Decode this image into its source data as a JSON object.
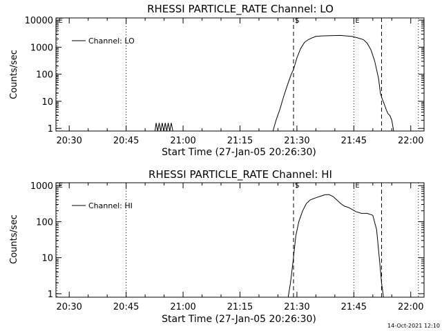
{
  "footer": {
    "timestamp": "14-Oct-2021 12:10"
  },
  "chart_data": [
    {
      "type": "line",
      "title": "RHESSI PARTICLE_RATE Channel: LO",
      "xlabel": "Start Time (27-Jan-05 20:26:30)",
      "ylabel": "Counts/sec",
      "yscale": "log",
      "xlim_minutes": [
        0,
        97
      ],
      "ylim": [
        0.8,
        12000
      ],
      "x_ticks": [
        "20:30",
        "20:45",
        "21:00",
        "21:15",
        "21:30",
        "21:45",
        "22:00"
      ],
      "x_tick_minutes": [
        3.5,
        18.5,
        33.5,
        48.5,
        63.5,
        78.5,
        93.5
      ],
      "y_ticks": [
        "1",
        "10",
        "100",
        "1000",
        "10000"
      ],
      "y_tick_values": [
        1,
        10,
        100,
        1000,
        10000
      ],
      "legend": {
        "label": "Channel: LO",
        "position": "top-left"
      },
      "markers": [
        {
          "label": "E",
          "x": 0.3,
          "style": "dotted"
        },
        {
          "label": "",
          "x": 18.5,
          "style": "dotted"
        },
        {
          "label": "S",
          "x": 62.6,
          "style": "dashed"
        },
        {
          "label": "E",
          "x": 78.5,
          "style": "dotted"
        },
        {
          "label": "",
          "x": 85.8,
          "style": "dashed"
        },
        {
          "label": "",
          "x": 95.5,
          "style": "dotted"
        }
      ],
      "series": [
        {
          "name": "Channel: LO",
          "x": [
            26.1,
            26.4,
            26.8,
            27.2,
            27.6,
            28.0,
            28.4,
            28.8,
            29.2,
            29.6,
            30.0,
            30.4,
            30.8
          ],
          "y": [
            0.8,
            1.6,
            0.8,
            1.6,
            0.8,
            1.6,
            0.8,
            1.6,
            0.8,
            1.6,
            0.8,
            1.6,
            0.8
          ]
        },
        {
          "name": "Channel: LO",
          "x": [
            57.2,
            58.0,
            59.0,
            60.0,
            61.0,
            62.0,
            62.6,
            63.5,
            64.5,
            65.5,
            66.5,
            67.5,
            68.5,
            70.0,
            72.0,
            75.0,
            78.0,
            79.5,
            81.0,
            82.0,
            83.0,
            84.0,
            85.0,
            85.5,
            86.0,
            86.5,
            87.0,
            87.5,
            88.0,
            88.5,
            89.0
          ],
          "y": [
            0.8,
            2,
            5,
            15,
            40,
            100,
            150,
            400,
            900,
            1500,
            1900,
            2200,
            2500,
            2600,
            2650,
            2700,
            2500,
            2200,
            1900,
            1400,
            800,
            300,
            70,
            20,
            12,
            8,
            5,
            3.5,
            3,
            2,
            0.8
          ]
        }
      ]
    },
    {
      "type": "line",
      "title": "RHESSI PARTICLE_RATE Channel: HI",
      "xlabel": "Start Time (27-Jan-05 20:26:30)",
      "ylabel": "Counts/sec",
      "yscale": "log",
      "xlim_minutes": [
        0,
        97
      ],
      "ylim": [
        0.8,
        1200
      ],
      "x_ticks": [
        "20:30",
        "20:45",
        "21:00",
        "21:15",
        "21:30",
        "21:45",
        "22:00"
      ],
      "x_tick_minutes": [
        3.5,
        18.5,
        33.5,
        48.5,
        63.5,
        78.5,
        93.5
      ],
      "y_ticks": [
        "1",
        "10",
        "100",
        "1000"
      ],
      "y_tick_values": [
        1,
        10,
        100,
        1000
      ],
      "legend": {
        "label": "Channel: HI",
        "position": "top-left"
      },
      "markers": [
        {
          "label": "E",
          "x": 0.3,
          "style": "dotted"
        },
        {
          "label": "",
          "x": 18.5,
          "style": "dotted"
        },
        {
          "label": "S",
          "x": 62.6,
          "style": "dashed"
        },
        {
          "label": "E",
          "x": 78.5,
          "style": "dotted"
        },
        {
          "label": "",
          "x": 85.8,
          "style": "dashed"
        },
        {
          "label": "",
          "x": 95.5,
          "style": "dotted"
        }
      ],
      "series": [
        {
          "name": "Channel: HI",
          "x": [
            61.2,
            61.8,
            62.5,
            63.2,
            64.0,
            65.0,
            66.0,
            67.0,
            68.0,
            69.0,
            70.0,
            71.0,
            72.0,
            73.0,
            74.0,
            75.0,
            76.0,
            77.0,
            78.0,
            79.0,
            80.5,
            82.0,
            83.5,
            84.5,
            85.2,
            85.8,
            86.3
          ],
          "y": [
            0.8,
            2,
            8,
            40,
            100,
            200,
            320,
            400,
            440,
            480,
            520,
            560,
            560,
            500,
            400,
            320,
            270,
            250,
            220,
            190,
            170,
            170,
            150,
            60,
            10,
            2,
            0.8
          ]
        }
      ]
    }
  ]
}
